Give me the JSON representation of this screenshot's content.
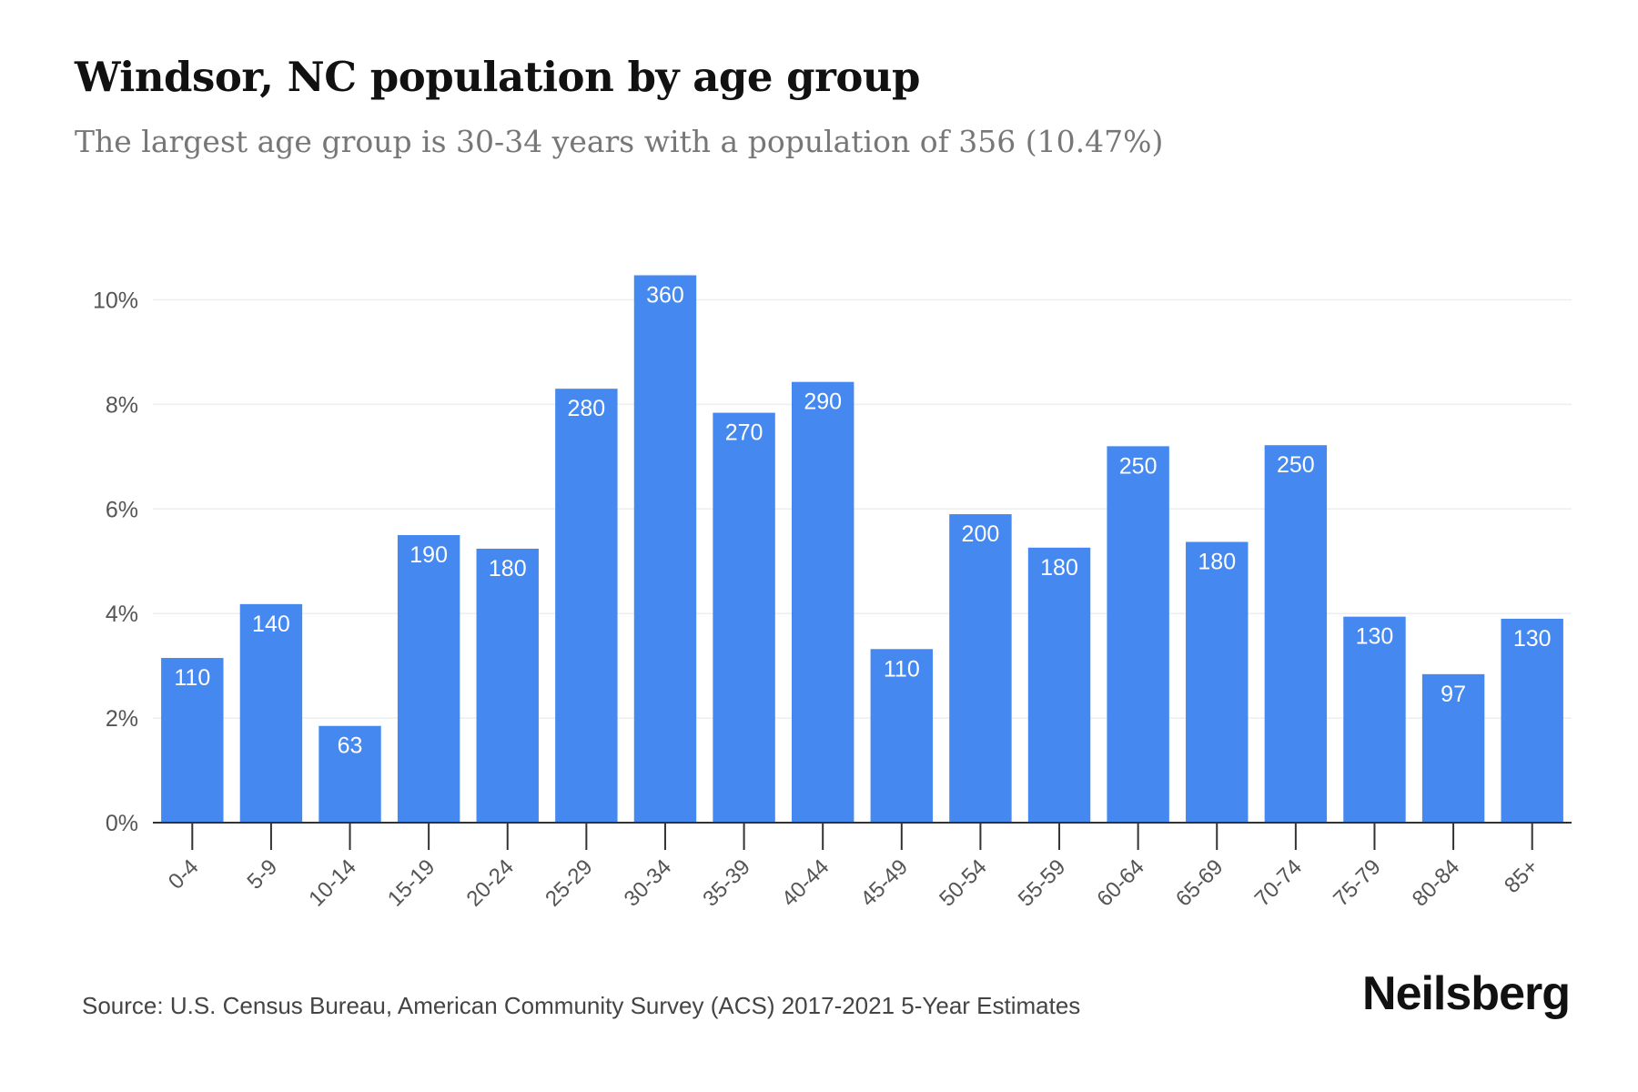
{
  "header": {
    "title": "Windsor, NC population by age group",
    "subtitle": "The largest age group is 30-34 years with a population of 356 (10.47%)"
  },
  "footer": {
    "source": "Source: U.S. Census Bureau, American Community Survey (ACS) 2017-2021 5-Year Estimates",
    "brand": "Neilsberg"
  },
  "colors": {
    "bar": "#4589f0",
    "bar_label": "#ffffff",
    "grid": "#eeeeee",
    "axis": "#333333",
    "tick_text": "#555555"
  },
  "chart_data": {
    "type": "bar",
    "title": "Windsor, NC population by age group",
    "subtitle": "The largest age group is 30-34 years with a population of 356 (10.47%)",
    "xlabel": "",
    "ylabel": "",
    "categories": [
      "0-4",
      "5-9",
      "10-14",
      "15-19",
      "20-24",
      "25-29",
      "30-34",
      "35-39",
      "40-44",
      "45-49",
      "50-54",
      "55-59",
      "60-64",
      "65-69",
      "70-74",
      "75-79",
      "80-84",
      "85+"
    ],
    "values": [
      3.15,
      4.18,
      1.85,
      5.5,
      5.24,
      8.3,
      10.47,
      7.84,
      8.43,
      3.32,
      5.9,
      5.26,
      7.2,
      5.37,
      7.22,
      3.94,
      2.84,
      3.9
    ],
    "value_unit": "%",
    "data_labels": [
      "110",
      "140",
      "63",
      "190",
      "180",
      "280",
      "360",
      "270",
      "290",
      "110",
      "200",
      "180",
      "250",
      "180",
      "250",
      "130",
      "97",
      "130"
    ],
    "ylim": [
      0,
      10.47
    ],
    "yticks": [
      0,
      2,
      4,
      6,
      8,
      10
    ],
    "ytick_labels": [
      "0%",
      "2%",
      "4%",
      "6%",
      "8%",
      "10%"
    ],
    "grid": true,
    "legend": "none"
  }
}
